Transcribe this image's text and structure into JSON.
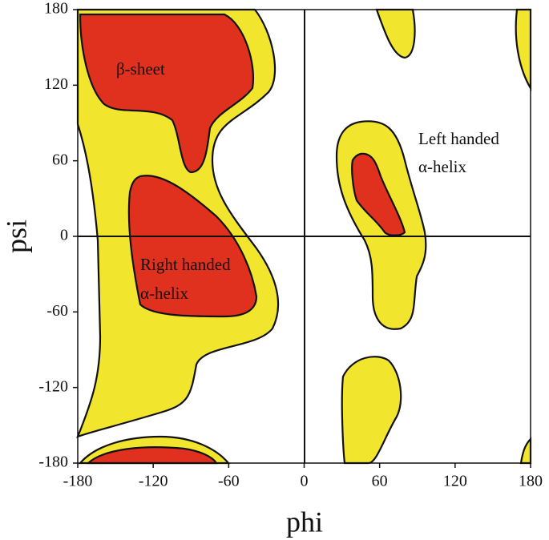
{
  "chart_data": {
    "type": "contour",
    "x_label": "phi",
    "y_label": "psi",
    "xlim": [
      -180,
      180
    ],
    "ylim": [
      -180,
      180
    ],
    "xticks": [
      -180,
      -120,
      -60,
      0,
      60,
      120,
      180
    ],
    "yticks": [
      -180,
      -120,
      -60,
      0,
      60,
      120,
      180
    ],
    "annotations": [
      "β-sheet",
      "Right handed",
      "α-helix",
      "Left handed",
      "α-helix"
    ]
  }
}
